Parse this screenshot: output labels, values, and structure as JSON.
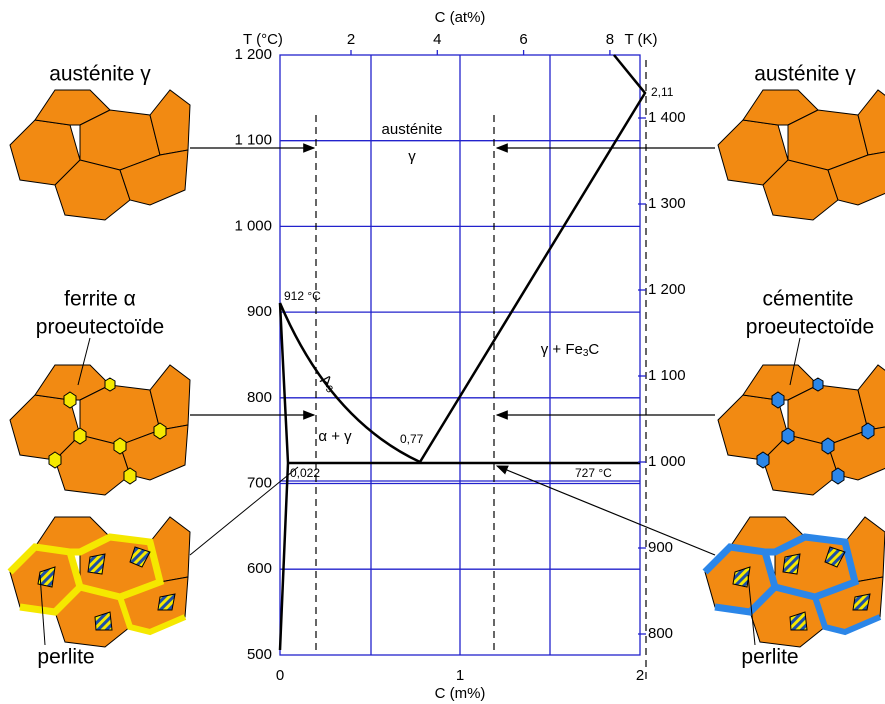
{
  "axes": {
    "left_title": "T (°C)",
    "left_ticks": [
      "1 200",
      "1 100",
      "1 000",
      "900",
      "800",
      "700",
      "600",
      "500"
    ],
    "right_title": "T (K)",
    "right_ticks": [
      "1 400",
      "1 300",
      "1 200",
      "1 100",
      "1 000",
      "900",
      "800"
    ],
    "top_title": "C (at%)",
    "top_ticks": [
      "2",
      "4",
      "6",
      "8"
    ],
    "bottom_title": "C (m%)",
    "bottom_ticks": [
      "0",
      "1",
      "2"
    ]
  },
  "side_labels": {
    "austenite_left": "austénite γ",
    "austenite_right": "austénite γ",
    "ferrite": "ferrite α",
    "proeutectoid_left": "proeutectoïde",
    "cementite": "cémentite",
    "proeutectoid_right": "proeutectoïde",
    "perlite_left": "perlite",
    "perlite_right": "perlite"
  },
  "regions": {
    "austenite": "austénite",
    "gamma": "γ",
    "alpha_gamma": "α + γ",
    "gamma_fe3c": {
      "pre": "γ + Fe",
      "sub": "3",
      "post": "C"
    },
    "a3": {
      "main": "A",
      "sub": "3"
    }
  },
  "annotations": {
    "t912": "912 °C",
    "c077": "0,77",
    "c0022": "0,022",
    "t727": "727 °C",
    "c211": "2,11"
  }
}
